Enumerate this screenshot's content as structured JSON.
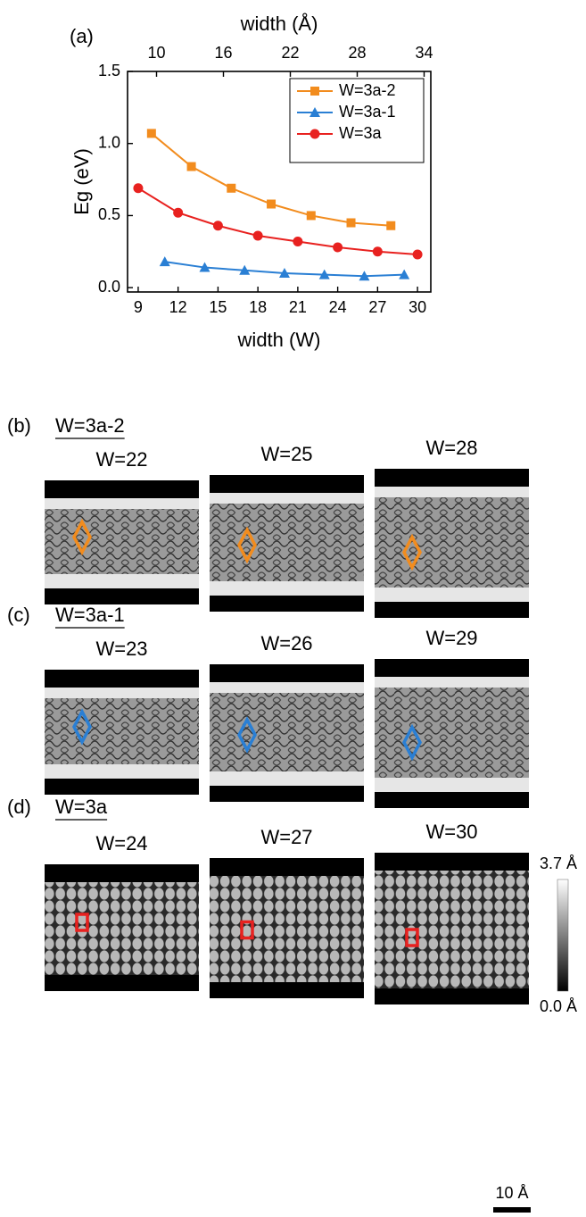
{
  "chart_data": {
    "type": "line",
    "panel_label": "(a)",
    "x_label": "width (W)",
    "x2_label": "width (Å)",
    "y_label": "Eg (eV)",
    "xlim": [
      8.2,
      31
    ],
    "xticks": [
      9,
      12,
      15,
      18,
      21,
      24,
      27,
      30
    ],
    "x2lim": [
      7.4,
      34.6
    ],
    "x2ticks": [
      10,
      16,
      22,
      28,
      34
    ],
    "ylim": [
      -0.03,
      1.5
    ],
    "yticks": [
      {
        "value": 0,
        "label": "0.0"
      },
      {
        "value": 0.5,
        "label": "0.5"
      },
      {
        "value": 1,
        "label": "1.0"
      },
      {
        "value": 1.5,
        "label": "1.5"
      }
    ],
    "legend": "upper right",
    "series": [
      {
        "name": "W=3a-2",
        "color": "#f28c1e",
        "marker": "square",
        "x": [
          10,
          13,
          16,
          19,
          22,
          25,
          28
        ],
        "values": [
          1.07,
          0.84,
          0.69,
          0.58,
          0.5,
          0.45,
          0.43
        ]
      },
      {
        "name": "W=3a-1",
        "color": "#2a7fd4",
        "marker": "triangle",
        "x": [
          11,
          14,
          17,
          20,
          23,
          26,
          29
        ],
        "values": [
          0.18,
          0.14,
          0.12,
          0.1,
          0.09,
          0.08,
          0.09
        ]
      },
      {
        "name": "W=3a",
        "color": "#e8211f",
        "marker": "circle",
        "x": [
          9,
          12,
          15,
          18,
          21,
          24,
          27,
          30
        ],
        "values": [
          0.69,
          0.52,
          0.43,
          0.36,
          0.32,
          0.28,
          0.25,
          0.23
        ]
      }
    ]
  },
  "panels": [
    {
      "label": "(b)",
      "title": "W=3a-2",
      "images": [
        "W=22",
        "W=25",
        "W=28"
      ]
    },
    {
      "label": "(c)",
      "title": "W=3a-1",
      "images": [
        "W=23",
        "W=26",
        "W=29"
      ]
    },
    {
      "label": "(d)",
      "title": "W=3a",
      "images": [
        "W=24",
        "W=27",
        "W=30"
      ]
    }
  ],
  "colorbar": {
    "max": "3.7 Å",
    "min": "0.0 Å"
  },
  "scale_bar": "10 Å"
}
